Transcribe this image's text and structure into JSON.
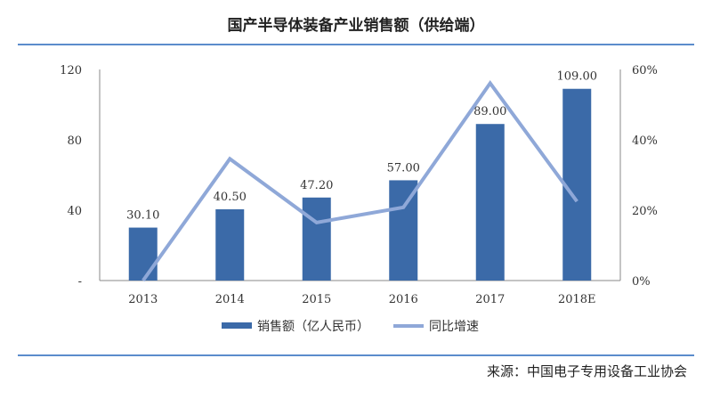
{
  "chart_data": {
    "type": "bar+line",
    "title": "国产半导体装备产业销售额（供给端）",
    "categories": [
      "2013",
      "2014",
      "2015",
      "2016",
      "2017",
      "2018E"
    ],
    "series": [
      {
        "name": "销售额（亿人民币）",
        "type": "bar",
        "axis": "left",
        "values": [
          30.1,
          40.5,
          47.2,
          57.0,
          89.0,
          109.0
        ],
        "labels": [
          "30.10",
          "40.50",
          "47.20",
          "57.00",
          "89.00",
          "109.00"
        ],
        "color": "#3b6aa8"
      },
      {
        "name": "同比增速",
        "type": "line",
        "axis": "right",
        "values": [
          0.0,
          34.6,
          16.5,
          20.8,
          56.1,
          22.5
        ],
        "color": "#8fa8d8"
      }
    ],
    "left_axis": {
      "ylim": [
        0,
        120
      ],
      "ticks": [
        "-",
        "40",
        "80",
        "120"
      ],
      "tick_values": [
        0,
        40,
        80,
        120
      ]
    },
    "right_axis": {
      "ylim": [
        0,
        60
      ],
      "ticks": [
        "0%",
        "20%",
        "40%",
        "60%"
      ],
      "tick_values": [
        0,
        20,
        40,
        60
      ]
    },
    "legend": "bottom",
    "grid": false
  },
  "source": "来源：中国电子专用设备工业协会"
}
